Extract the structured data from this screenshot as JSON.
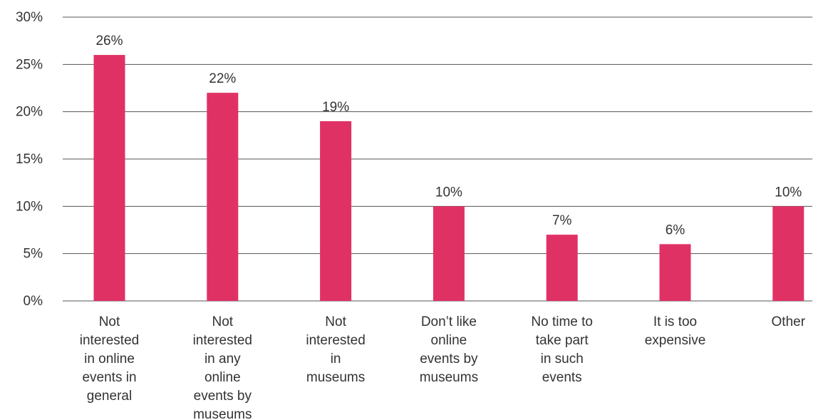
{
  "chart_data": {
    "type": "bar",
    "title": "",
    "xlabel": "",
    "ylabel": "",
    "ylim": [
      0,
      30
    ],
    "y_ticks": [
      "0%",
      "5%",
      "10%",
      "15%",
      "20%",
      "25%",
      "30%"
    ],
    "y_tick_values": [
      0,
      5,
      10,
      15,
      20,
      25,
      30
    ],
    "grid": true,
    "legend": "none",
    "bar_color": "#e03165",
    "categories": [
      "Not interested in online events in general",
      "Not interested in any online events by museums",
      "Not interested in museums",
      "Don’t like online events by museums",
      "No time to take part in such events",
      "It is too expensive",
      "Other"
    ],
    "category_lines": [
      [
        "Not",
        "interested",
        "in online",
        "events in",
        "general"
      ],
      [
        "Not",
        "interested",
        "in any",
        "online",
        "events by",
        "museums"
      ],
      [
        "Not",
        "interested",
        "in",
        "museums"
      ],
      [
        "Don’t like",
        "online",
        "events by",
        "museums"
      ],
      [
        "No time to",
        "take part",
        "in such",
        "events"
      ],
      [
        "It is too",
        "expensive"
      ],
      [
        "Other"
      ]
    ],
    "values": [
      26,
      22,
      19,
      10,
      7,
      6,
      10
    ],
    "value_labels": [
      "26%",
      "22%",
      "19%",
      "10%",
      "7%",
      "6%",
      "10%"
    ]
  }
}
